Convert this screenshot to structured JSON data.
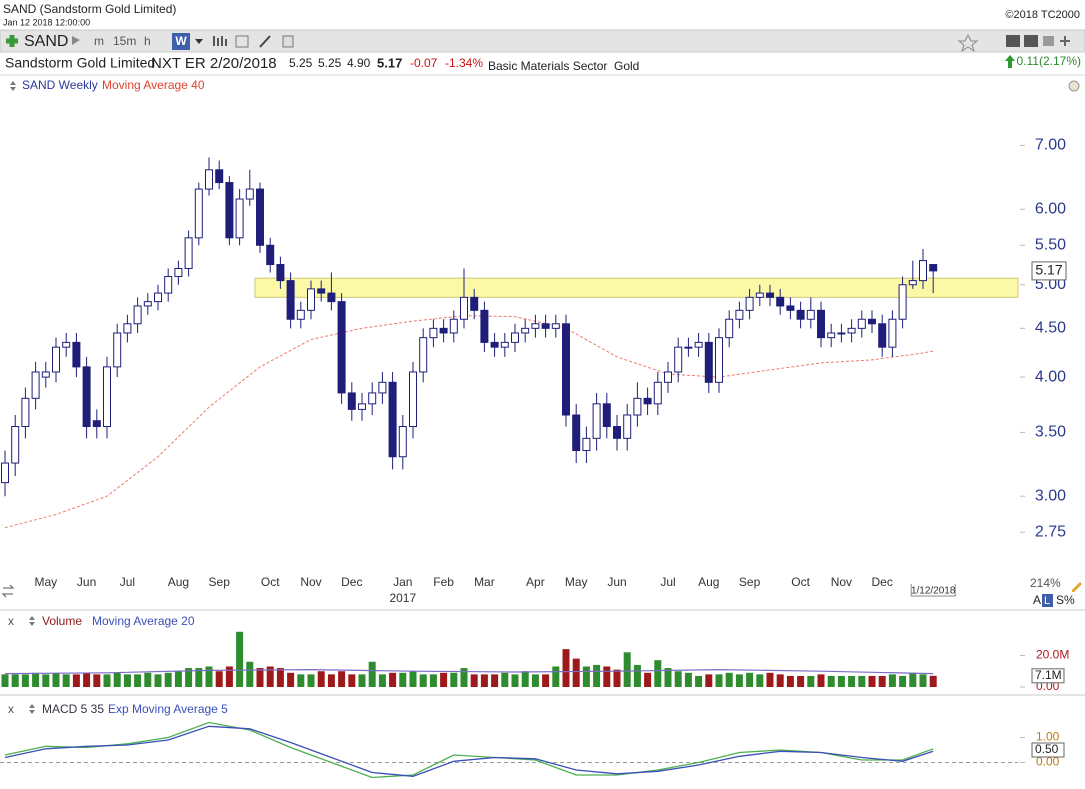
{
  "header": {
    "title": "SAND (Sandstorm Gold Limited)",
    "timestamp": "Jan 12 2018 12:00:00",
    "copyright": "©2018 TC2000"
  },
  "toolbar": {
    "symbol": "SAND",
    "timeframes": [
      "m",
      "15m",
      "h",
      "W"
    ]
  },
  "info_bar": {
    "name": "Sandstorm Gold Limited",
    "earnings": "NXT ER 2/20/2018",
    "open": "5.25",
    "high": "5.25",
    "low": "4.90",
    "close": "5.17",
    "change": "-0.07",
    "change_percent": "-1.34%",
    "sector": "Basic Materials Sector",
    "industry": "Gold",
    "right_change": "0.11(2.17%)"
  },
  "price_panel": {
    "zoom": "214%",
    "scale_buttons": [
      "A",
      "L",
      "S%"
    ]
  },
  "chart_data": [
    {
      "type": "candlestick",
      "name": "SAND Weekly",
      "color": "#1f1f7a",
      "log_scale": true,
      "categories": [
        null,
        null,
        null,
        null,
        "May",
        null,
        null,
        null,
        "Jun",
        null,
        null,
        null,
        "Jul",
        null,
        null,
        null,
        null,
        "Aug",
        null,
        null,
        null,
        "Sep",
        null,
        null,
        null,
        null,
        "Oct",
        null,
        null,
        null,
        "Nov",
        null,
        null,
        null,
        "Dec",
        null,
        null,
        null,
        null,
        "Jan",
        null,
        null,
        null,
        "Feb",
        null,
        null,
        null,
        "Mar",
        null,
        null,
        null,
        null,
        "Apr",
        null,
        null,
        null,
        "May",
        null,
        null,
        null,
        "Jun",
        null,
        null,
        null,
        null,
        "Jul",
        null,
        null,
        null,
        "Aug",
        null,
        null,
        null,
        "Sep",
        null,
        null,
        null,
        null,
        "Oct",
        null,
        null,
        null,
        "Nov",
        null,
        null,
        null,
        "Dec",
        null,
        null,
        null,
        null,
        null
      ],
      "year_label": "2017",
      "last_date_label": "1/12/2018",
      "open": [
        3.1,
        3.25,
        3.55,
        3.8,
        4.0,
        4.05,
        4.3,
        4.35,
        4.1,
        3.6,
        3.55,
        4.1,
        4.45,
        4.55,
        4.75,
        4.8,
        4.9,
        5.1,
        5.2,
        5.6,
        6.3,
        6.6,
        6.4,
        5.6,
        6.15,
        6.3,
        5.5,
        5.25,
        5.05,
        4.6,
        4.7,
        4.95,
        4.9,
        4.8,
        3.85,
        3.7,
        3.75,
        3.85,
        3.95,
        3.3,
        3.55,
        4.05,
        4.4,
        4.5,
        4.45,
        4.6,
        4.85,
        4.7,
        4.35,
        4.3,
        4.35,
        4.45,
        4.5,
        4.55,
        4.5,
        4.55,
        3.65,
        3.35,
        3.45,
        3.75,
        3.55,
        3.45,
        3.65,
        3.8,
        3.75,
        3.95,
        4.05,
        4.3,
        4.3,
        4.35,
        3.95,
        4.4,
        4.6,
        4.7,
        4.85,
        4.9,
        4.85,
        4.75,
        4.7,
        4.6,
        4.7,
        4.4,
        4.45,
        4.45,
        4.5,
        4.6,
        4.55,
        4.3,
        4.6,
        5.0,
        5.05,
        5.25
      ],
      "high": [
        3.35,
        3.65,
        3.9,
        4.15,
        4.15,
        4.4,
        4.45,
        4.45,
        4.2,
        3.7,
        4.2,
        4.55,
        4.65,
        4.85,
        4.9,
        5.0,
        5.2,
        5.3,
        5.7,
        6.4,
        6.8,
        6.75,
        6.5,
        6.3,
        6.6,
        6.4,
        5.6,
        5.35,
        5.15,
        4.8,
        5.05,
        5.05,
        5.15,
        4.9,
        3.95,
        3.85,
        3.95,
        4.05,
        4.05,
        3.65,
        4.15,
        4.5,
        4.6,
        4.6,
        4.7,
        5.2,
        4.95,
        4.8,
        4.45,
        4.45,
        4.55,
        4.6,
        4.65,
        4.65,
        4.65,
        4.65,
        3.75,
        3.55,
        3.85,
        3.85,
        3.65,
        3.75,
        3.95,
        3.9,
        4.05,
        4.15,
        4.4,
        4.4,
        4.45,
        4.45,
        4.5,
        4.7,
        4.8,
        4.95,
        5.0,
        5.0,
        4.95,
        4.85,
        4.8,
        4.85,
        4.8,
        4.55,
        4.55,
        4.6,
        4.7,
        4.7,
        4.65,
        4.7,
        5.1,
        5.3,
        5.45,
        5.25
      ],
      "low": [
        3.0,
        3.15,
        3.45,
        3.7,
        3.9,
        3.95,
        4.2,
        4.0,
        3.45,
        3.45,
        3.45,
        4.0,
        4.35,
        4.45,
        4.65,
        4.7,
        4.8,
        5.0,
        5.1,
        5.5,
        6.2,
        6.3,
        5.5,
        5.5,
        6.05,
        5.4,
        5.15,
        4.95,
        4.5,
        4.5,
        4.6,
        4.8,
        4.7,
        3.75,
        3.6,
        3.6,
        3.65,
        3.75,
        3.2,
        3.2,
        3.45,
        3.95,
        4.3,
        4.35,
        4.35,
        4.5,
        4.6,
        4.25,
        4.2,
        4.2,
        4.25,
        4.35,
        4.4,
        4.4,
        4.4,
        3.55,
        3.25,
        3.25,
        3.35,
        3.45,
        3.35,
        3.35,
        3.55,
        3.65,
        3.65,
        3.85,
        3.95,
        4.2,
        4.2,
        3.85,
        3.85,
        4.3,
        4.5,
        4.6,
        4.75,
        4.75,
        4.65,
        4.6,
        4.5,
        4.5,
        4.3,
        4.3,
        4.35,
        4.35,
        4.4,
        4.45,
        4.2,
        4.2,
        4.5,
        4.95,
        4.95,
        4.9
      ],
      "close": [
        3.25,
        3.55,
        3.8,
        4.05,
        4.05,
        4.3,
        4.35,
        4.1,
        3.55,
        3.55,
        4.1,
        4.45,
        4.55,
        4.75,
        4.8,
        4.9,
        5.1,
        5.2,
        5.6,
        6.3,
        6.6,
        6.4,
        5.6,
        6.15,
        6.3,
        5.5,
        5.25,
        5.05,
        4.6,
        4.7,
        4.95,
        4.9,
        4.8,
        3.85,
        3.7,
        3.75,
        3.85,
        3.95,
        3.3,
        3.55,
        4.05,
        4.4,
        4.5,
        4.45,
        4.6,
        4.85,
        4.7,
        4.35,
        4.3,
        4.35,
        4.45,
        4.5,
        4.55,
        4.5,
        4.55,
        3.65,
        3.35,
        3.45,
        3.75,
        3.55,
        3.45,
        3.65,
        3.8,
        3.75,
        3.95,
        4.05,
        4.3,
        4.3,
        4.35,
        3.95,
        4.4,
        4.6,
        4.7,
        4.85,
        4.9,
        4.85,
        4.75,
        4.7,
        4.6,
        4.7,
        4.4,
        4.45,
        4.45,
        4.5,
        4.6,
        4.55,
        4.3,
        4.6,
        5.0,
        5.05,
        5.3,
        5.17
      ],
      "series": [
        {
          "name": "Moving Average 40",
          "color": "#ee7a6a",
          "dashed": true,
          "x": [
            0,
            5,
            10,
            15,
            20,
            25,
            30,
            35,
            40,
            45,
            50,
            55,
            60,
            65,
            70,
            75,
            80,
            85,
            90,
            91
          ],
          "values": [
            2.78,
            2.87,
            3.0,
            3.3,
            3.72,
            4.1,
            4.38,
            4.5,
            4.58,
            4.64,
            4.63,
            4.5,
            4.2,
            4.03,
            4.0,
            4.07,
            4.14,
            4.17,
            4.24,
            4.26
          ]
        }
      ],
      "band": {
        "low": 4.85,
        "high": 5.08,
        "from": 25
      },
      "ylim": [
        2.48,
        7.85
      ],
      "yticks": [
        2.75,
        {
          "value": 3,
          "label": "3.00"
        },
        {
          "value": 3.5,
          "label": "3.50"
        },
        {
          "value": 4,
          "label": "4.00"
        },
        {
          "value": 4.5,
          "label": "4.50"
        },
        {
          "value": 5,
          "label": "5.00"
        },
        {
          "value": 5.5,
          "label": "5.50"
        },
        {
          "value": 6,
          "label": "6.00"
        },
        {
          "value": 7,
          "label": "7.00"
        }
      ]
    },
    {
      "type": "bar",
      "name": "Volume",
      "close_label": "x",
      "up_color": "#2e8b2e",
      "down_color": "#9e1a1a",
      "values": [
        8,
        8,
        8,
        9,
        8,
        9,
        8,
        8,
        9,
        8,
        8,
        9,
        8,
        8,
        9,
        8,
        9,
        10,
        12,
        12,
        13,
        10,
        13,
        35,
        16,
        12,
        13,
        12,
        9,
        8,
        8,
        10,
        8,
        10,
        8,
        8,
        16,
        8,
        9,
        9,
        10,
        8,
        8,
        9,
        9,
        12,
        8,
        8,
        8,
        9,
        8,
        10,
        8,
        8,
        13,
        24,
        18,
        13,
        14,
        13,
        11,
        22,
        14,
        9,
        17,
        12,
        10,
        9,
        7,
        8,
        8,
        9,
        8,
        9,
        8,
        9,
        8,
        7,
        7,
        7,
        8,
        7,
        7,
        7,
        7,
        7,
        7,
        8,
        7,
        9,
        8,
        7.1
      ],
      "series": [
        {
          "name": "Moving Average 20",
          "color": "#7b6cc8",
          "x": [
            0,
            10,
            20,
            30,
            40,
            50,
            60,
            70,
            80,
            91
          ],
          "values": [
            8.5,
            9,
            10.5,
            11,
            10,
            9.5,
            10,
            11,
            10,
            8.5
          ]
        }
      ],
      "ylim": [
        0,
        37.4
      ],
      "yticks": [
        {
          "value": 0,
          "label": "0.00"
        },
        {
          "value": 20,
          "label": "20.0M"
        }
      ],
      "marker_label": {
        "value": 7.1,
        "label": "7.1M"
      }
    },
    {
      "type": "line",
      "close_label": "x",
      "zero_line": true,
      "series": [
        {
          "name": "MACD 5 35",
          "color": "#4caf50",
          "x": [
            0,
            4,
            8,
            12,
            16,
            20,
            24,
            28,
            32,
            36,
            40,
            44,
            48,
            52,
            56,
            60,
            64,
            68,
            72,
            76,
            80,
            84,
            88,
            91
          ],
          "values": [
            0.3,
            0.65,
            0.6,
            0.75,
            1.0,
            1.6,
            1.3,
            0.6,
            0.0,
            -0.6,
            -0.5,
            0.3,
            0.2,
            0.1,
            -0.5,
            -0.5,
            -0.3,
            0.0,
            0.4,
            0.5,
            0.4,
            0.1,
            0.1,
            0.55
          ]
        },
        {
          "name": "Exp Moving Average 5",
          "color": "#3b4fb8",
          "x": [
            0,
            4,
            8,
            12,
            16,
            20,
            24,
            28,
            32,
            36,
            40,
            44,
            48,
            52,
            56,
            60,
            64,
            68,
            72,
            76,
            80,
            84,
            88,
            91
          ],
          "values": [
            0.2,
            0.55,
            0.65,
            0.7,
            0.9,
            1.45,
            1.35,
            0.8,
            0.2,
            -0.4,
            -0.55,
            0.05,
            0.2,
            0.15,
            -0.3,
            -0.45,
            -0.35,
            -0.1,
            0.25,
            0.45,
            0.4,
            0.2,
            0.05,
            0.45
          ]
        }
      ],
      "ylim": [
        -0.9,
        2.5
      ],
      "yticks": [
        {
          "value": 0,
          "label": "0.00"
        },
        {
          "value": 1,
          "label": "1.00"
        }
      ],
      "marker_label": {
        "value": 0.5,
        "label": "0.50"
      }
    }
  ]
}
